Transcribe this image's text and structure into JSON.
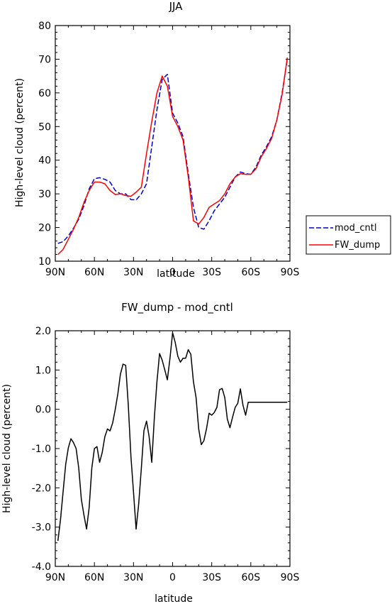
{
  "chart_data": [
    {
      "type": "line",
      "title": "JJA",
      "xlabel": "latitude",
      "ylabel": "High-level cloud (percent)",
      "xlim": [
        90,
        -90
      ],
      "ylim": [
        10,
        80
      ],
      "x_ticks": [
        90,
        60,
        30,
        0,
        -30,
        -60,
        -90
      ],
      "x_tick_labels": [
        "90N",
        "60N",
        "30N",
        "0",
        "30S",
        "60S",
        "90S"
      ],
      "y_ticks": [
        10,
        20,
        30,
        40,
        50,
        60,
        70,
        80
      ],
      "y_tick_labels": [
        "10",
        "20",
        "30",
        "40",
        "50",
        "60",
        "70",
        "80"
      ],
      "legend_position": "right",
      "series": [
        {
          "name": "mod_cntl",
          "color": "#0000cc",
          "dash": "dashed",
          "x": [
            88,
            84,
            80,
            76,
            72,
            68,
            64,
            60,
            56,
            52,
            48,
            44,
            40,
            36,
            32,
            28,
            24,
            20,
            16,
            12,
            8,
            4,
            0,
            -4,
            -8,
            -12,
            -16,
            -20,
            -24,
            -28,
            -32,
            -36,
            -40,
            -44,
            -48,
            -52,
            -56,
            -60,
            -64,
            -68,
            -72,
            -76,
            -80,
            -84,
            -88
          ],
          "values": [
            15.3,
            15.8,
            17.5,
            19.8,
            22.5,
            26.5,
            31.5,
            34.5,
            34.8,
            34.3,
            33.5,
            31,
            30,
            30,
            28.3,
            28.2,
            30,
            33,
            44,
            55,
            64,
            65.5,
            54,
            51,
            47,
            36,
            26,
            20,
            19.5,
            22,
            25,
            27,
            29,
            32,
            35,
            36.5,
            36,
            35.8,
            38,
            41.5,
            44,
            47,
            52,
            60,
            70
          ]
        },
        {
          "name": "FW_dump",
          "color": "#ff0000",
          "dash": "solid",
          "x": [
            88,
            84,
            80,
            76,
            72,
            68,
            64,
            60,
            56,
            52,
            48,
            44,
            40,
            36,
            32,
            28,
            24,
            20,
            16,
            12,
            8,
            4,
            0,
            -4,
            -8,
            -12,
            -16,
            -20,
            -24,
            -28,
            -32,
            -36,
            -40,
            -44,
            -48,
            -52,
            -56,
            -60,
            -64,
            -68,
            -72,
            -76,
            -80,
            -84,
            -88
          ],
          "values": [
            12,
            13.5,
            16.5,
            19.5,
            23,
            27.5,
            31,
            33.5,
            33.5,
            33,
            31,
            29.8,
            30,
            29.5,
            29.3,
            30.5,
            32,
            42,
            51.5,
            60,
            65,
            62,
            53,
            50,
            46,
            35,
            22,
            21,
            23,
            26,
            27,
            28,
            30,
            33,
            35,
            36,
            35.8,
            35.8,
            37.5,
            41,
            43.5,
            46.5,
            52,
            59.5,
            70.5
          ]
        }
      ]
    },
    {
      "type": "line",
      "title": "FW_dump - mod_cntl",
      "xlabel": "latitude",
      "ylabel": "High-level cloud (percent)",
      "xlim": [
        90,
        -90
      ],
      "ylim": [
        -4,
        2
      ],
      "x_ticks": [
        90,
        60,
        30,
        0,
        -30,
        -60,
        -90
      ],
      "x_tick_labels": [
        "90N",
        "60N",
        "30N",
        "0",
        "30S",
        "60S",
        "90S"
      ],
      "y_ticks": [
        -4,
        -3,
        -2,
        -1,
        0,
        1,
        2
      ],
      "y_tick_labels": [
        "-4.0",
        "-3.0",
        "-2.0",
        "-1.0",
        "0.0",
        "1.0",
        "2.0"
      ],
      "series": [
        {
          "color": "#000000",
          "dash": "solid",
          "x": [
            88,
            86,
            84,
            82,
            80,
            78,
            76,
            74,
            72,
            70,
            68,
            66,
            64,
            62,
            60,
            58,
            56,
            54,
            52,
            50,
            48,
            46,
            44,
            42,
            40,
            38,
            36,
            34,
            32,
            30,
            28,
            26,
            24,
            22,
            20,
            18,
            16,
            14,
            12,
            10,
            8,
            6,
            4,
            2,
            0,
            -2,
            -4,
            -6,
            -8,
            -10,
            -12,
            -14,
            -16,
            -18,
            -20,
            -22,
            -24,
            -26,
            -28,
            -30,
            -32,
            -34,
            -36,
            -38,
            -40,
            -42,
            -44,
            -46,
            -48,
            -50,
            -52,
            -54,
            -56,
            -58,
            -60,
            -62,
            -64,
            -66,
            -68,
            -70,
            -72,
            -74,
            -76,
            -78,
            -80,
            -82,
            -84,
            -86,
            -88
          ],
          "values": [
            -3.35,
            -2.8,
            -2.1,
            -1.4,
            -0.98,
            -0.75,
            -0.85,
            -1.0,
            -1.5,
            -2.3,
            -2.7,
            -3.05,
            -2.5,
            -1.5,
            -1.0,
            -0.95,
            -1.35,
            -1.1,
            -0.7,
            -0.5,
            -0.55,
            -0.35,
            0.0,
            0.4,
            0.9,
            1.15,
            1.12,
            0.1,
            -1.2,
            -2.1,
            -3.05,
            -2.4,
            -1.5,
            -0.55,
            -0.3,
            -0.7,
            -1.35,
            -0.2,
            0.7,
            1.42,
            1.25,
            1.0,
            0.75,
            1.3,
            1.95,
            1.7,
            1.35,
            1.2,
            1.3,
            1.3,
            1.52,
            1.4,
            0.7,
            0.3,
            -0.5,
            -0.9,
            -0.8,
            -0.5,
            -0.1,
            -0.15,
            -0.08,
            0.05,
            0.5,
            0.53,
            0.3,
            -0.25,
            -0.47,
            -0.2,
            0.05,
            0.15,
            0.52,
            0.1,
            -0.15,
            0.18,
            0.18,
            0.18,
            0.18,
            0.18,
            0.18,
            0.18,
            0.18,
            0.18,
            0.18,
            0.18,
            0.18,
            0.18,
            0.18,
            0.18,
            0.18
          ]
        }
      ]
    }
  ]
}
